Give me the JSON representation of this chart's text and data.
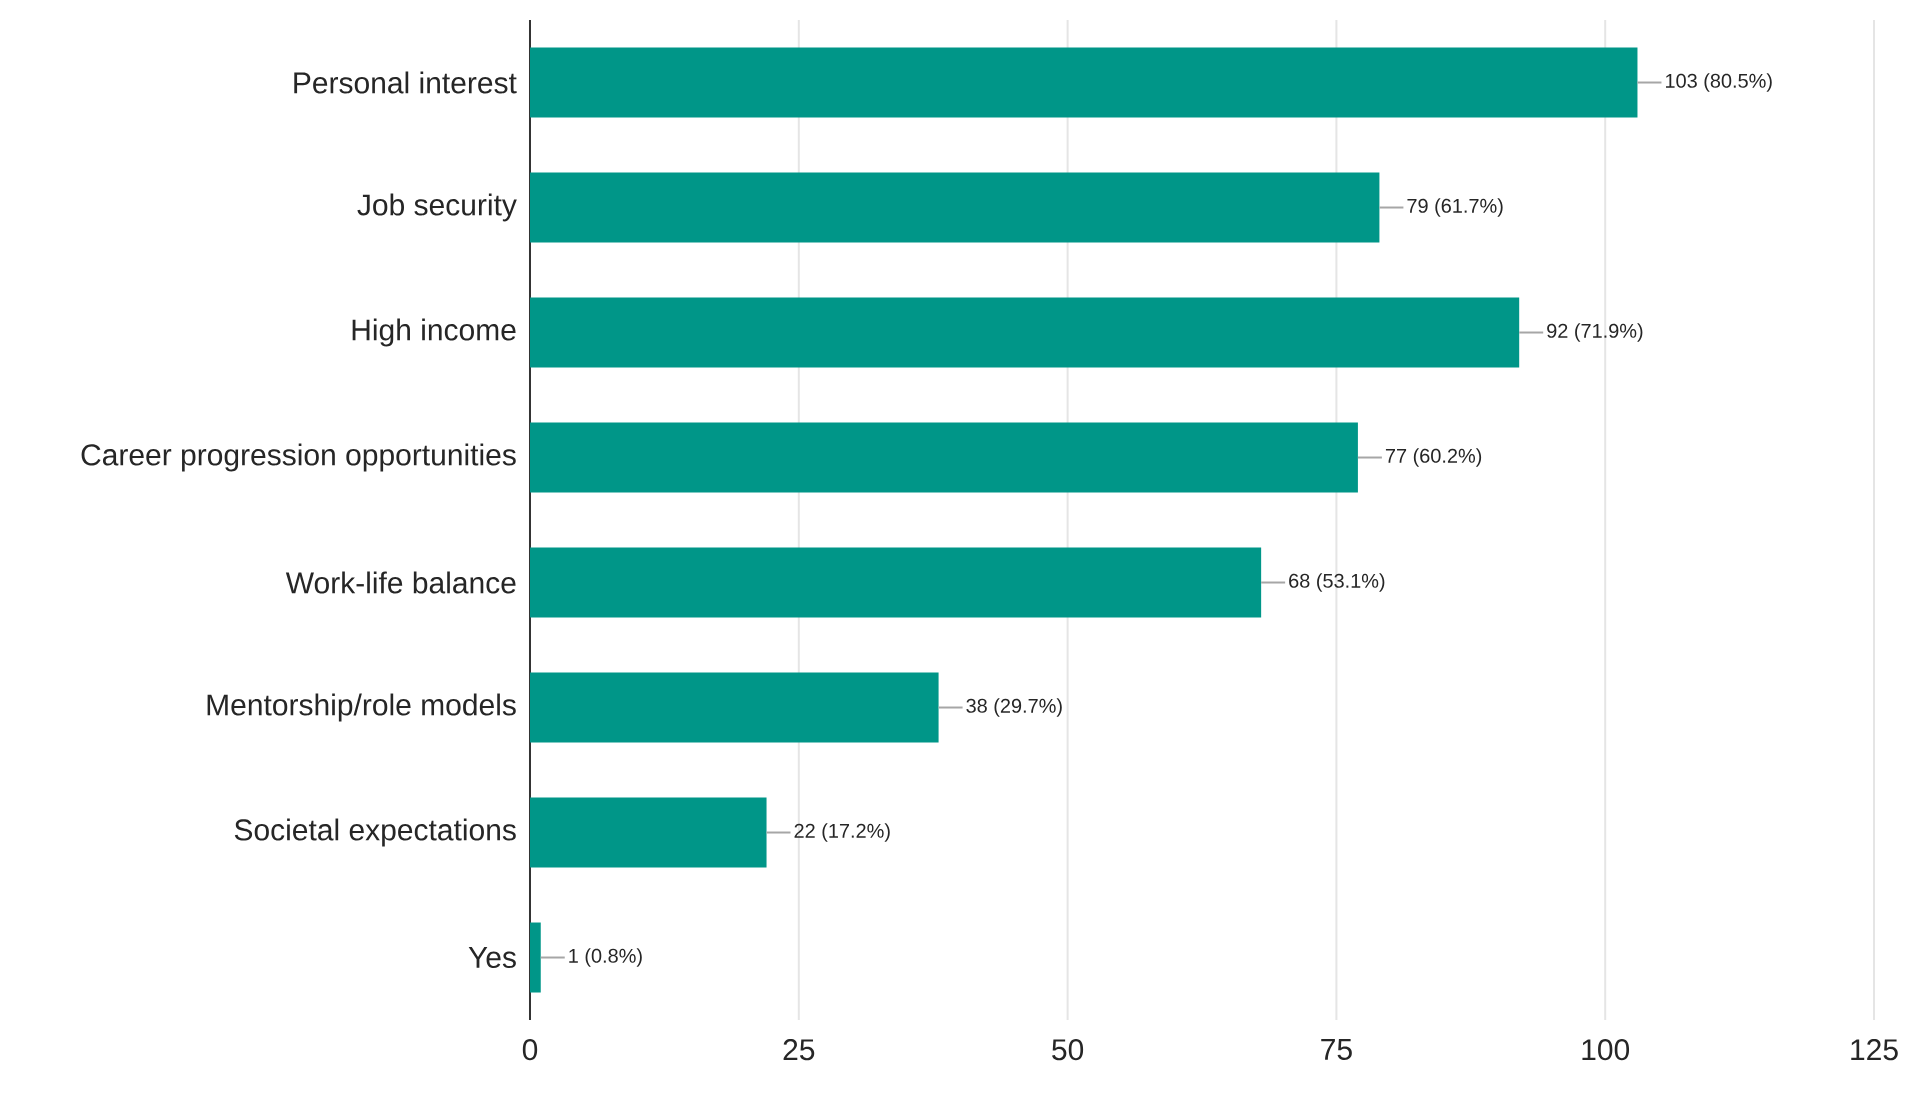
{
  "chart_data": {
    "type": "bar",
    "orientation": "horizontal",
    "categories": [
      "Personal interest",
      "Job security",
      "High income",
      "Career progression opportunities",
      "Work-life balance",
      "Mentorship/role models",
      "Societal expectations",
      "Yes"
    ],
    "values": [
      103,
      79,
      92,
      77,
      68,
      38,
      22,
      1
    ],
    "value_labels": [
      "103 (80.5%)",
      "79 (61.7%)",
      "92 (71.9%)",
      "77 (60.2%)",
      "68 (53.1%)",
      "38 (29.7%)",
      "22 (17.2%)",
      "1 (0.8%)"
    ],
    "color": "#009688",
    "xlim": [
      0,
      125
    ],
    "xticks": [
      0,
      25,
      50,
      75,
      100,
      125
    ],
    "grid": "x"
  }
}
